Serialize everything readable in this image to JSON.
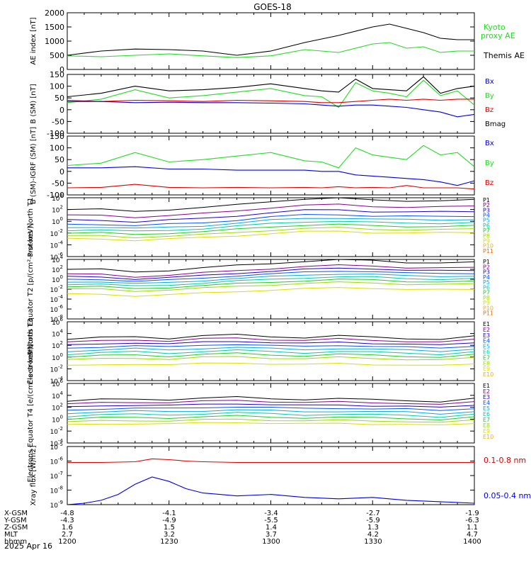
{
  "title": "GOES-18",
  "date": "2025 Apr 16",
  "colors": {
    "black": "#000000",
    "green": "#22dd22",
    "red": "#dd0000",
    "blue": "#0000dd",
    "ladder": [
      "#000000",
      "#880088",
      "#2200cc",
      "#0055ff",
      "#00aaee",
      "#00ccaa",
      "#22cc22",
      "#99dd00",
      "#dddd00",
      "#ffaa00",
      "#ff6600",
      "#dd0000",
      "#bb0000"
    ]
  },
  "orbit": {
    "row_labels": [
      "X-GSM",
      "Y-GSM",
      "Z-GSM",
      "MLT",
      "hhmm"
    ],
    "columns": [
      [
        "-4.8",
        "-4.3",
        "1.6",
        "2.7",
        "1200"
      ],
      [
        "-4.1",
        "-4.9",
        "1.5",
        "3.2",
        "1230"
      ],
      [
        "-3.4",
        "-5.5",
        "1.4",
        "3.7",
        "1300"
      ],
      [
        "-2.7",
        "-5.9",
        "1.3",
        "4.2",
        "1330"
      ],
      [
        "-1.9",
        "-6.3",
        "1.1",
        "4.7",
        "1400"
      ]
    ]
  },
  "chart_data": [
    {
      "type": "line",
      "ylabel": "AE index [nT]",
      "ylim": [
        0,
        2000
      ],
      "yticks": [
        "0",
        "500",
        "1000",
        "1500",
        "2000"
      ],
      "legend": [
        {
          "name": "Kyoto proxy AE",
          "color": "#22dd22"
        },
        {
          "name": "Themis AE",
          "color": "#000000"
        }
      ],
      "series": [
        {
          "name": "Themis AE",
          "color": "#000000",
          "x": [
            0,
            10,
            20,
            30,
            40,
            50,
            60,
            70,
            80,
            90,
            95,
            100,
            105,
            110,
            115,
            120
          ],
          "y": [
            500,
            650,
            720,
            700,
            650,
            500,
            650,
            950,
            1200,
            1500,
            1600,
            1450,
            1300,
            1100,
            1050,
            1050
          ]
        },
        {
          "name": "Kyoto proxy AE",
          "color": "#22dd22",
          "x": [
            0,
            10,
            20,
            30,
            40,
            50,
            60,
            70,
            80,
            90,
            95,
            100,
            105,
            110,
            115,
            120
          ],
          "y": [
            480,
            450,
            500,
            550,
            480,
            420,
            480,
            700,
            600,
            900,
            950,
            750,
            800,
            600,
            650,
            650
          ]
        }
      ]
    },
    {
      "type": "line",
      "ylabel": "B (SM) [nT]",
      "ylim": [
        -100,
        150
      ],
      "yticks": [
        "-100",
        "-50",
        "0",
        "50",
        "100",
        "150"
      ],
      "legend": [
        {
          "name": "Bx",
          "color": "#0000dd"
        },
        {
          "name": "By",
          "color": "#22dd22"
        },
        {
          "name": "Bz",
          "color": "#dd0000"
        },
        {
          "name": "Bmag",
          "color": "#000000"
        }
      ],
      "series": [
        {
          "name": "Bmag",
          "color": "#000000",
          "x": [
            0,
            10,
            20,
            30,
            40,
            50,
            60,
            70,
            75,
            80,
            85,
            90,
            95,
            100,
            105,
            110,
            115,
            120
          ],
          "y": [
            55,
            70,
            100,
            80,
            85,
            95,
            110,
            90,
            80,
            75,
            130,
            90,
            85,
            80,
            140,
            70,
            90,
            100
          ]
        },
        {
          "name": "By",
          "color": "#22dd22",
          "x": [
            0,
            10,
            20,
            30,
            40,
            50,
            60,
            70,
            75,
            80,
            85,
            90,
            95,
            100,
            105,
            110,
            115,
            120
          ],
          "y": [
            30,
            45,
            85,
            50,
            60,
            75,
            90,
            60,
            55,
            10,
            115,
            80,
            70,
            55,
            125,
            60,
            80,
            20
          ]
        },
        {
          "name": "Bz",
          "color": "#dd0000",
          "x": [
            0,
            10,
            20,
            30,
            40,
            50,
            60,
            70,
            75,
            80,
            85,
            90,
            95,
            100,
            105,
            110,
            115,
            120
          ],
          "y": [
            40,
            35,
            40,
            38,
            35,
            40,
            38,
            35,
            30,
            30,
            35,
            40,
            45,
            40,
            45,
            40,
            45,
            45
          ]
        },
        {
          "name": "Bx",
          "color": "#0000dd",
          "x": [
            0,
            10,
            20,
            30,
            40,
            50,
            60,
            70,
            75,
            80,
            85,
            90,
            95,
            100,
            105,
            110,
            115,
            120
          ],
          "y": [
            35,
            35,
            30,
            32,
            30,
            30,
            28,
            25,
            20,
            15,
            20,
            20,
            15,
            10,
            0,
            -10,
            -30,
            -20
          ]
        }
      ]
    },
    {
      "type": "line",
      "ylabel": "B (SM)-IGRF (SM) [nT]",
      "ylim": [
        -100,
        150
      ],
      "yticks": [
        "-100",
        "-50",
        "0",
        "50",
        "100",
        "150"
      ],
      "legend": [
        {
          "name": "Bx",
          "color": "#0000dd"
        },
        {
          "name": "By",
          "color": "#22dd22"
        },
        {
          "name": "Bz",
          "color": "#dd0000"
        }
      ],
      "series": [
        {
          "name": "By",
          "color": "#22dd22",
          "x": [
            0,
            10,
            20,
            30,
            40,
            50,
            60,
            70,
            75,
            80,
            85,
            90,
            95,
            100,
            105,
            110,
            115,
            120
          ],
          "y": [
            25,
            35,
            80,
            40,
            50,
            65,
            80,
            45,
            40,
            15,
            100,
            70,
            60,
            50,
            110,
            70,
            80,
            20
          ]
        },
        {
          "name": "Bx",
          "color": "#0000dd",
          "x": [
            0,
            10,
            20,
            30,
            40,
            50,
            60,
            70,
            75,
            80,
            85,
            90,
            95,
            100,
            105,
            110,
            115,
            120
          ],
          "y": [
            15,
            15,
            20,
            10,
            10,
            5,
            5,
            5,
            0,
            0,
            -15,
            -20,
            -25,
            -30,
            -35,
            -45,
            -60,
            -40
          ]
        },
        {
          "name": "Bz",
          "color": "#dd0000",
          "x": [
            0,
            10,
            20,
            30,
            40,
            50,
            60,
            70,
            75,
            80,
            85,
            90,
            95,
            100,
            105,
            110,
            115,
            120
          ],
          "y": [
            -70,
            -68,
            -55,
            -68,
            -70,
            -68,
            -70,
            -68,
            -70,
            -65,
            -70,
            -68,
            -70,
            -60,
            -70,
            -70,
            -70,
            -75
          ]
        }
      ]
    },
    {
      "type": "line",
      "ylabel": "Protons North T1",
      "log": true,
      "ylim": [
        -6,
        4
      ],
      "ytick_exps": [
        "-6",
        "-4",
        "-2",
        "0",
        "2",
        "4"
      ],
      "channels": [
        "P1",
        "P2",
        "P3",
        "P4",
        "P5",
        "P6",
        "P7",
        "P8",
        "P9",
        "P10",
        "P11"
      ],
      "levels": [
        2,
        1,
        0.2,
        -0.5,
        -1,
        -1.5,
        -2,
        -2.5,
        -3
      ],
      "profile": [
        0,
        0,
        -0.3,
        0,
        0.3,
        0.8,
        1.4,
        1.8,
        1.9,
        1.6,
        1.5,
        1.5,
        1.6
      ]
    },
    {
      "type": "line",
      "ylabel": "Protons Equator T2 [p/(cm²-s-sr-keV)]",
      "log": true,
      "ylim": [
        -8,
        4
      ],
      "ytick_exps": [
        "-8",
        "-6",
        "-4",
        "-2",
        "0",
        "2",
        "4"
      ],
      "channels": [
        "P1",
        "P2",
        "P3",
        "P4",
        "P5",
        "P6",
        "P7",
        "P8",
        "P9",
        "P10",
        "P11"
      ],
      "levels": [
        2,
        1,
        0.5,
        0,
        -0.5,
        -1,
        -1.5,
        -2,
        -3
      ],
      "profile": [
        0,
        0,
        -0.5,
        -0.2,
        0.3,
        0.8,
        1.2,
        1.6,
        1.9,
        1.8,
        1.4,
        1.3,
        1.4
      ]
    },
    {
      "type": "line",
      "ylabel": "Electrons North T3",
      "log": true,
      "ylim": [
        -4,
        6
      ],
      "ytick_exps": [
        "-4",
        "-2",
        "0",
        "2",
        "4",
        "6"
      ],
      "channels": [
        "E1",
        "E2",
        "E3",
        "E4",
        "E5",
        "E6",
        "E7",
        "E8",
        "E9",
        "E10"
      ],
      "levels": [
        3,
        2.5,
        2,
        1.5,
        1,
        0.5,
        0,
        -0.5,
        -1.5
      ],
      "profile": [
        0,
        0.3,
        0.5,
        0.2,
        0.6,
        0.8,
        0.5,
        0.3,
        0.6,
        0.4,
        0.2,
        0,
        0.5
      ]
    },
    {
      "type": "line",
      "ylabel": "Electrons Equator T4 [e/(cm²-s-sr-keV)]",
      "log": true,
      "ylim": [
        -4,
        6
      ],
      "ytick_exps": [
        "-4",
        "-2",
        "0",
        "2",
        "4",
        "6"
      ],
      "channels": [
        "E1",
        "E2",
        "E3",
        "E4",
        "E5",
        "E6",
        "E7",
        "E8",
        "E9",
        "E10"
      ],
      "levels": [
        3,
        2.5,
        2,
        1.5,
        1,
        0.5,
        0,
        -0.5,
        -1
      ],
      "profile": [
        0,
        0.3,
        0.4,
        0.3,
        0.5,
        0.7,
        0.5,
        0.3,
        0.4,
        0.3,
        0.2,
        -0.1,
        0.4
      ]
    },
    {
      "type": "line",
      "ylabel": "Xray flux [W/m2]",
      "log": true,
      "ylim": [
        -9,
        -5
      ],
      "ytick_exps": [
        "-9",
        "-8",
        "-7",
        "-6",
        "-5"
      ],
      "legend": [
        {
          "name": "0.1-0.8 nm",
          "color": "#dd0000"
        },
        {
          "name": "0.05-0.4 nm",
          "color": "#0000dd"
        }
      ],
      "series": [
        {
          "name": "0.1-0.8 nm",
          "color": "#dd0000",
          "x": [
            0,
            10,
            20,
            25,
            30,
            35,
            40,
            50,
            60,
            70,
            80,
            90,
            100,
            110,
            120
          ],
          "y": [
            -6.1,
            -6.1,
            -6.05,
            -5.85,
            -5.9,
            -6.0,
            -6.05,
            -6.1,
            -6.1,
            -6.1,
            -6.1,
            -6.1,
            -6.1,
            -6.1,
            -6.1
          ]
        },
        {
          "name": "0.05-0.4 nm",
          "color": "#0000dd",
          "x": [
            0,
            5,
            10,
            15,
            20,
            25,
            30,
            35,
            40,
            45,
            50,
            60,
            70,
            80,
            90,
            100,
            110,
            120
          ],
          "y": [
            -9.0,
            -8.9,
            -8.7,
            -8.3,
            -7.6,
            -7.1,
            -7.4,
            -7.9,
            -8.2,
            -8.3,
            -8.4,
            -8.3,
            -8.5,
            -8.6,
            -8.5,
            -8.7,
            -8.8,
            -8.9
          ]
        }
      ]
    }
  ]
}
